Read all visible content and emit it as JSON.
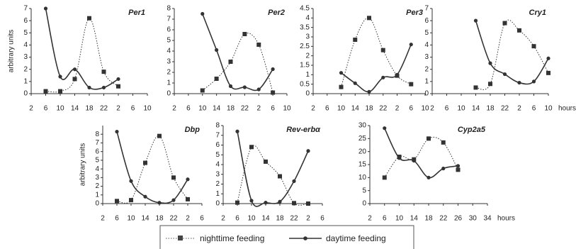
{
  "chart_data": [
    {
      "type": "line",
      "title": "Per1",
      "y_label": "arbitrary units",
      "x": [
        6,
        10,
        14,
        18,
        22,
        26
      ],
      "series": [
        {
          "name": "nighttime feeding",
          "color": "#333333",
          "marker": "square",
          "line_style": "dotted",
          "values": [
            0.2,
            0.2,
            1.2,
            6.2,
            1.8,
            0.6
          ]
        },
        {
          "name": "daytime feeding",
          "color": "#333333",
          "marker": "circle",
          "line_style": "solid",
          "values": [
            7,
            1.4,
            2.0,
            0.5,
            0.5,
            1.2
          ]
        }
      ],
      "xlim": [
        2,
        34
      ],
      "xticks": [
        2,
        6,
        10,
        14,
        18,
        22,
        {
          "value": 26,
          "label": "2"
        },
        {
          "value": 30,
          "label": "6"
        },
        {
          "value": 34,
          "label": "10"
        }
      ],
      "ylim": [
        0,
        7
      ],
      "yticks": [
        0,
        1,
        2,
        3,
        4,
        5,
        6,
        7
      ]
    },
    {
      "type": "line",
      "title": "Per2",
      "x": [
        10,
        14,
        18,
        22,
        26,
        30
      ],
      "series": [
        {
          "name": "nighttime feeding",
          "color": "#333333",
          "marker": "square",
          "line_style": "dotted",
          "values": [
            0.3,
            1.4,
            3.0,
            5.6,
            4.6,
            0.1
          ]
        },
        {
          "name": "daytime feeding",
          "color": "#333333",
          "marker": "circle",
          "line_style": "solid",
          "values": [
            7.5,
            4.1,
            0.7,
            0.6,
            0.4,
            2.3
          ]
        }
      ],
      "xlim": [
        2,
        34
      ],
      "xticks": [
        2,
        6,
        10,
        14,
        18,
        22,
        {
          "value": 26,
          "label": "2"
        },
        {
          "value": 30,
          "label": "6"
        },
        {
          "value": 34,
          "label": "10"
        }
      ],
      "ylim": [
        0,
        8
      ],
      "yticks": [
        0,
        1,
        2,
        3,
        4,
        5,
        6,
        7,
        8
      ]
    },
    {
      "type": "line",
      "title": "Per3",
      "x": [
        10,
        14,
        18,
        22,
        26,
        30
      ],
      "series": [
        {
          "name": "nighttime feeding",
          "color": "#333333",
          "marker": "square",
          "line_style": "dotted",
          "values": [
            0.35,
            2.85,
            4.0,
            2.3,
            0.95,
            0.5
          ]
        },
        {
          "name": "daytime feeding",
          "color": "#333333",
          "marker": "circle",
          "line_style": "solid",
          "values": [
            1.1,
            0.55,
            0.1,
            0.85,
            1.0,
            2.6
          ]
        }
      ],
      "xlim": [
        2,
        34
      ],
      "xticks": [
        2,
        6,
        10,
        14,
        18,
        22,
        {
          "value": 26,
          "label": "2"
        },
        {
          "value": 30,
          "label": "6"
        },
        {
          "value": 34,
          "label": "10"
        }
      ],
      "ylim": [
        0,
        4.5
      ],
      "yticks": [
        0,
        0.5,
        1,
        1.5,
        2,
        2.5,
        3,
        3.5,
        4,
        4.5
      ]
    },
    {
      "type": "line",
      "title": "Cry1",
      "x_label": "hours",
      "x": [
        14,
        18,
        22,
        26,
        30,
        34
      ],
      "series": [
        {
          "name": "nighttime feeding",
          "color": "#333333",
          "marker": "square",
          "line_style": "dotted",
          "values": [
            0.5,
            0.8,
            5.8,
            5.2,
            3.9,
            1.7
          ]
        },
        {
          "name": "daytime feeding",
          "color": "#333333",
          "marker": "circle",
          "line_style": "solid",
          "values": [
            6.0,
            2.5,
            1.6,
            0.9,
            1.0,
            2.9
          ]
        }
      ],
      "xlim": [
        2,
        34
      ],
      "xticks": [
        2,
        6,
        10,
        14,
        18,
        22,
        {
          "value": 26,
          "label": "2"
        },
        {
          "value": 30,
          "label": "6"
        },
        {
          "value": 34,
          "label": "10"
        }
      ],
      "ylim": [
        0,
        7
      ],
      "yticks": [
        0,
        1,
        2,
        3,
        4,
        5,
        6,
        7
      ]
    },
    {
      "type": "line",
      "title": "Dbp",
      "y_label": "arbitrary units",
      "x": [
        6,
        10,
        14,
        18,
        22,
        26
      ],
      "series": [
        {
          "name": "nighttime feeding",
          "color": "#333333",
          "marker": "square",
          "line_style": "dotted",
          "values": [
            0.3,
            0.4,
            4.7,
            7.8,
            3.0,
            0.5
          ]
        },
        {
          "name": "daytime feeding",
          "color": "#333333",
          "marker": "circle",
          "line_style": "solid",
          "values": [
            8.3,
            2.6,
            0.8,
            0.1,
            0.4,
            2.8
          ]
        }
      ],
      "xlim": [
        2,
        30
      ],
      "xticks": [
        2,
        6,
        10,
        14,
        18,
        22,
        {
          "value": 26,
          "label": "2"
        },
        {
          "value": 30,
          "label": "6"
        }
      ],
      "ylim": [
        0,
        9
      ],
      "yticks": [
        0,
        1,
        2,
        3,
        4,
        5,
        6,
        7,
        8
      ]
    },
    {
      "type": "line",
      "title": "Rev-erbα",
      "x": [
        6,
        10,
        14,
        18,
        22,
        26
      ],
      "series": [
        {
          "name": "nighttime feeding",
          "color": "#333333",
          "marker": "square",
          "line_style": "dotted",
          "values": [
            0.1,
            5.8,
            4.3,
            2.8,
            0.05,
            0
          ]
        },
        {
          "name": "daytime feeding",
          "color": "#333333",
          "marker": "circle",
          "line_style": "solid",
          "values": [
            7.4,
            0.3,
            0.1,
            0.2,
            2.3,
            5.4
          ]
        }
      ],
      "xlim": [
        2,
        30
      ],
      "xticks": [
        2,
        6,
        10,
        14,
        18,
        22,
        {
          "value": 26,
          "label": "2"
        },
        {
          "value": 30,
          "label": "6"
        }
      ],
      "ylim": [
        0,
        8
      ],
      "yticks": [
        0,
        1,
        2,
        3,
        4,
        5,
        6,
        7,
        8
      ]
    },
    {
      "type": "line",
      "title": "Cyp2a5",
      "x_label": "hours",
      "x": [
        6,
        10,
        14,
        18,
        22,
        26
      ],
      "series": [
        {
          "name": "nighttime feeding",
          "color": "#333333",
          "marker": "square",
          "line_style": "dotted",
          "values": [
            10,
            18,
            17,
            25,
            23.5,
            13
          ]
        },
        {
          "name": "daytime feeding",
          "color": "#333333",
          "marker": "circle",
          "line_style": "solid",
          "values": [
            29,
            17.5,
            16.5,
            10,
            13.5,
            14.5
          ]
        }
      ],
      "xlim": [
        2,
        34
      ],
      "xticks": [
        2,
        6,
        10,
        14,
        18,
        22,
        26,
        30,
        34
      ],
      "ylim": [
        0,
        30
      ],
      "yticks": [
        0,
        5,
        10,
        15,
        20,
        25,
        30
      ]
    }
  ]
}
